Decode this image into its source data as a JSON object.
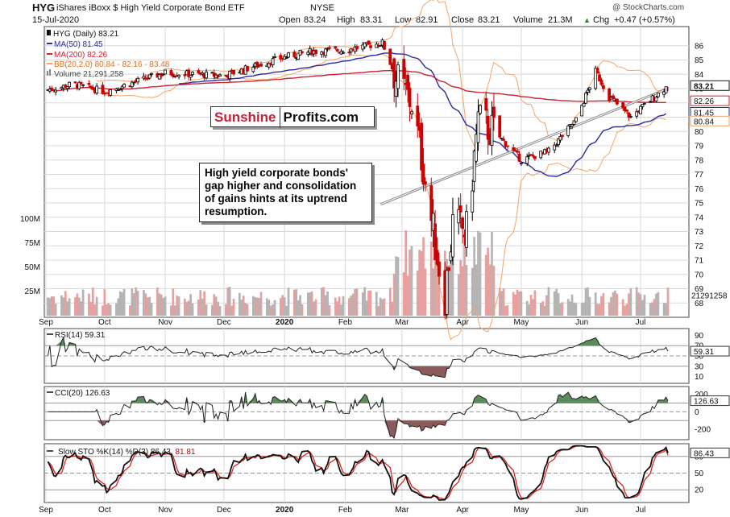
{
  "header": {
    "symbol": "HYG",
    "name": "iShares iBoxx $ High Yield Corporate Bond ETF",
    "exchange": "NYSE",
    "date": "15-Jul-2020",
    "open_label": "Open",
    "open": "83.24",
    "high_label": "High",
    "high": "83.31",
    "low_label": "Low",
    "low": "82.91",
    "close_label": "Close",
    "close": "83.21",
    "volume_label": "Volume",
    "volume": "21.3M",
    "chg_label": "Chg",
    "chg": "+0.47 (+0.57%)",
    "up_arrow": "▲",
    "copyright": "@ StockCharts.com"
  },
  "legend": {
    "main": "HYG (Daily) 83.21",
    "ma50": "MA(50) 81.45",
    "ma200": "MA(200) 82.26",
    "bb": "BB(20,2.0) 80.84 - 82.16 - 83.48",
    "volume": "Volume 21,291,258"
  },
  "watermark": {
    "part1": "Sunshine",
    "part2": "Profits.com"
  },
  "annotation": "High yield corporate bonds' gap higher and consolidation of gains hints at its uptrend resumption.",
  "colors": {
    "up": "#000000",
    "down": "#cc0000",
    "ma50": "#2a2aa0",
    "ma200": "#cc2233",
    "bb": "#f2a56b",
    "vol_up": "#b4b4b4",
    "vol_down": "#e7a0a0",
    "osc_pos": "#5b8a5b",
    "osc_neg": "#8b5a5a",
    "grid": "#d8d8d8"
  },
  "panels": {
    "rsi": {
      "label": "RSI(14) 59.31",
      "value": "59.31",
      "ticks": [
        "90",
        "70",
        "50",
        "30",
        "10"
      ]
    },
    "cci": {
      "label": "CCI(20) 126.63",
      "value": "126.63",
      "ticks": [
        "200",
        "0",
        "-200"
      ]
    },
    "sto": {
      "label": "Slow STO %K(14) %D(3) 86.43, ",
      "label_d": "81.81",
      "value": "86.43",
      "ticks": [
        "80",
        "50",
        "20"
      ]
    }
  },
  "chart_data": {
    "type": "candlestick",
    "symbol": "HYG",
    "x_range": [
      "2019-09-01",
      "2020-07-15"
    ],
    "x_tick_labels": [
      "Sep",
      "Oct",
      "Nov",
      "Dec",
      "2020",
      "Feb",
      "Mar",
      "Apr",
      "May",
      "Jun",
      "Jul"
    ],
    "price_axis": {
      "ylim": [
        67,
        87
      ],
      "tick_labels": [
        "86",
        "85",
        "84",
        "83",
        "82",
        "81",
        "80",
        "79",
        "78",
        "77",
        "76",
        "75",
        "74",
        "73",
        "72",
        "71",
        "70",
        "69",
        "68"
      ],
      "highlighted_labels": [
        "83.21",
        "82.26",
        "81.45",
        "80.84"
      ]
    },
    "volume_axis": {
      "tick_labels": [
        "100M",
        "75M",
        "50M",
        "25M"
      ],
      "last_label": "21291258"
    },
    "close_series": [
      {
        "date": "2019-09-01",
        "close": 82.9
      },
      {
        "date": "2019-09-15",
        "close": 83.3
      },
      {
        "date": "2019-10-01",
        "close": 82.8
      },
      {
        "date": "2019-10-15",
        "close": 83.4
      },
      {
        "date": "2019-11-01",
        "close": 84.1
      },
      {
        "date": "2019-11-15",
        "close": 84.0
      },
      {
        "date": "2019-12-01",
        "close": 83.9
      },
      {
        "date": "2019-12-15",
        "close": 84.5
      },
      {
        "date": "2020-01-01",
        "close": 85.2
      },
      {
        "date": "2020-01-15",
        "close": 85.6
      },
      {
        "date": "2020-02-01",
        "close": 85.7
      },
      {
        "date": "2020-02-20",
        "close": 86.2
      },
      {
        "date": "2020-02-28",
        "close": 83.4
      },
      {
        "date": "2020-03-06",
        "close": 82.0
      },
      {
        "date": "2020-03-12",
        "close": 77.5
      },
      {
        "date": "2020-03-16",
        "close": 73.8
      },
      {
        "date": "2020-03-20",
        "close": 70.5
      },
      {
        "date": "2020-03-23",
        "close": 68.5
      },
      {
        "date": "2020-03-27",
        "close": 73.5
      },
      {
        "date": "2020-04-03",
        "close": 73.0
      },
      {
        "date": "2020-04-09",
        "close": 80.8
      },
      {
        "date": "2020-04-20",
        "close": 79.6
      },
      {
        "date": "2020-05-01",
        "close": 78.0
      },
      {
        "date": "2020-05-15",
        "close": 78.6
      },
      {
        "date": "2020-05-29",
        "close": 80.8
      },
      {
        "date": "2020-06-08",
        "close": 84.2
      },
      {
        "date": "2020-06-15",
        "close": 82.4
      },
      {
        "date": "2020-06-26",
        "close": 81.0
      },
      {
        "date": "2020-07-06",
        "close": 82.2
      },
      {
        "date": "2020-07-15",
        "close": 83.21
      }
    ],
    "ma50_last": 81.45,
    "ma200_last": 82.26,
    "bb_last": {
      "lower": 80.84,
      "middle": 82.16,
      "upper": 83.48
    },
    "volume_last": 21291258,
    "rsi_last": 59.31,
    "cci_last": 126.63,
    "sto_last": {
      "k": 86.43,
      "d": 81.81
    }
  }
}
